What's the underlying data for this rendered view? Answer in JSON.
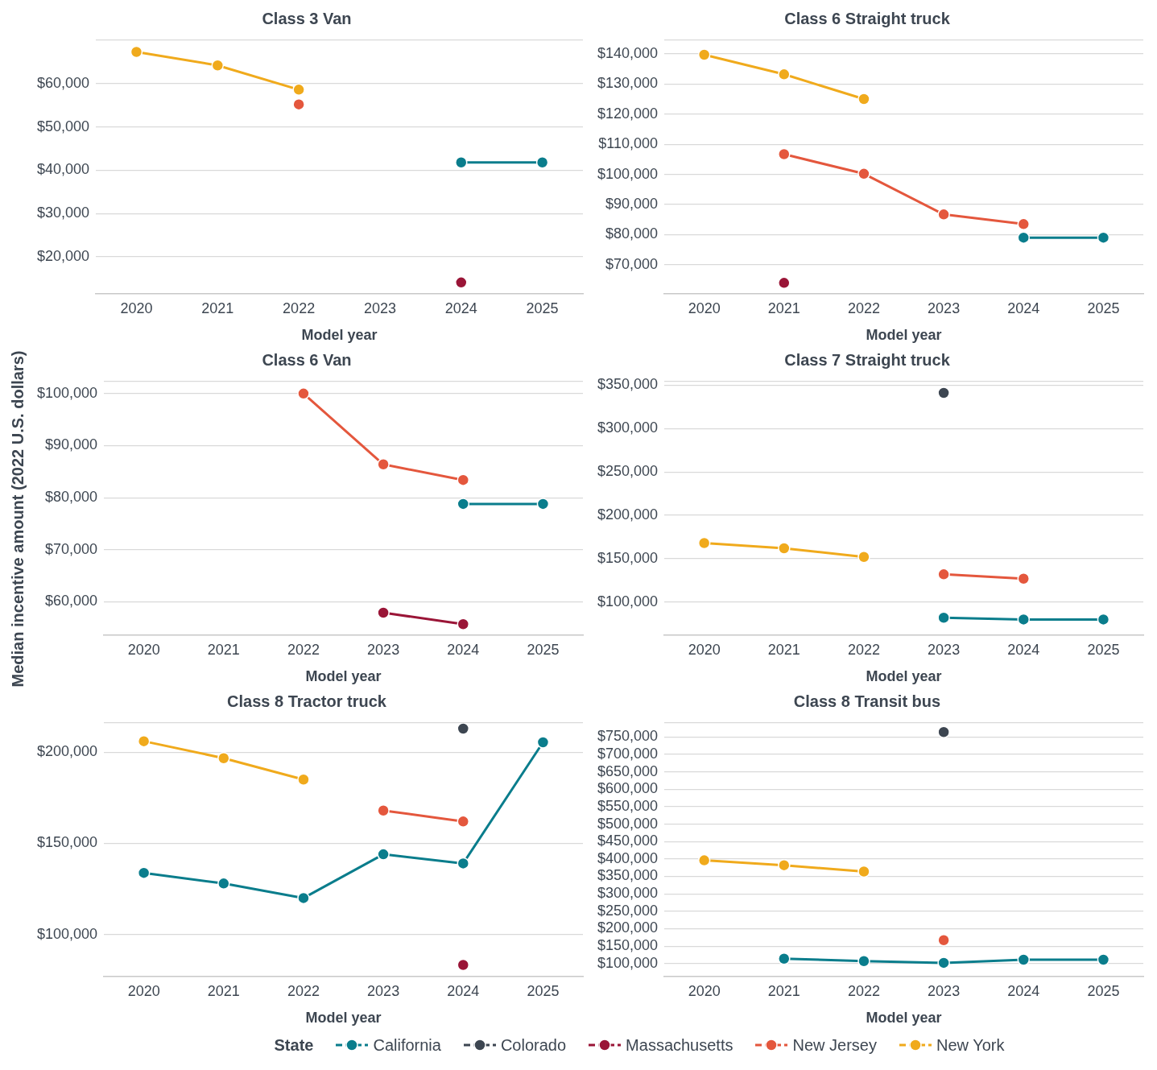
{
  "chart_data": [
    {
      "type": "line",
      "title": "Class 3 Van",
      "xlabel": "Model year",
      "categories": [
        "2020",
        "2021",
        "2022",
        "2023",
        "2024",
        "2025"
      ],
      "marker": "circle",
      "grid": "y",
      "ylim": [
        11500,
        70000
      ],
      "yticks": [
        {
          "value": 20000,
          "label": "$20,000"
        },
        {
          "value": 30000,
          "label": "$30,000"
        },
        {
          "value": 40000,
          "label": "$40,000"
        },
        {
          "value": 50000,
          "label": "$50,000"
        },
        {
          "value": 60000,
          "label": "$60,000"
        },
        {
          "value": 70000,
          "label": null
        }
      ],
      "series": [
        {
          "color": "#0a7d8c",
          "values": [
            null,
            null,
            null,
            null,
            41800,
            41800
          ]
        },
        {
          "color": "#9a1537",
          "values": [
            null,
            null,
            null,
            null,
            14100,
            null
          ]
        },
        {
          "color": "#e4573d",
          "values": [
            null,
            null,
            55200,
            null,
            null,
            null
          ]
        },
        {
          "color": "#f0aa1c",
          "values": [
            67300,
            64200,
            58600,
            null,
            null,
            null
          ]
        }
      ]
    },
    {
      "type": "line",
      "title": "Class 6 Straight truck",
      "xlabel": "Model year",
      "categories": [
        "2020",
        "2021",
        "2022",
        "2023",
        "2024",
        "2025"
      ],
      "marker": "circle",
      "grid": "y",
      "ylim": [
        60400,
        144500
      ],
      "yticks": [
        {
          "value": 70000,
          "label": "$70,000"
        },
        {
          "value": 80000,
          "label": "$80,000"
        },
        {
          "value": 90000,
          "label": "$90,000"
        },
        {
          "value": 100000,
          "label": "$100,000"
        },
        {
          "value": 110000,
          "label": "$110,000"
        },
        {
          "value": 120000,
          "label": "$120,000"
        },
        {
          "value": 130000,
          "label": "$130,000"
        },
        {
          "value": 140000,
          "label": "$140,000"
        },
        {
          "value": 144500,
          "label": null
        }
      ],
      "series": [
        {
          "color": "#0a7d8c",
          "values": [
            null,
            null,
            null,
            null,
            79000,
            79000
          ]
        },
        {
          "color": "#9a1537",
          "values": [
            null,
            64000,
            null,
            null,
            null,
            null
          ]
        },
        {
          "color": "#e4573d",
          "values": [
            null,
            106700,
            100200,
            86700,
            83500,
            null
          ]
        },
        {
          "color": "#f0aa1c",
          "values": [
            139700,
            133200,
            125000,
            null,
            null,
            null
          ]
        }
      ]
    },
    {
      "type": "line",
      "title": "Class 6 Van",
      "xlabel": "Model year",
      "ylabel": "Median incentive amount (2022 U.S. dollars)",
      "categories": [
        "2020",
        "2021",
        "2022",
        "2023",
        "2024",
        "2025"
      ],
      "marker": "circle",
      "grid": "y",
      "ylim": [
        53600,
        102300
      ],
      "yticks": [
        {
          "value": 60000,
          "label": "$60,000"
        },
        {
          "value": 70000,
          "label": "$70,000"
        },
        {
          "value": 80000,
          "label": "$80,000"
        },
        {
          "value": 90000,
          "label": "$90,000"
        },
        {
          "value": 100000,
          "label": "$100,000"
        },
        {
          "value": 102300,
          "label": null
        }
      ],
      "series": [
        {
          "color": "#0a7d8c",
          "values": [
            null,
            null,
            null,
            null,
            78800,
            78800
          ]
        },
        {
          "color": "#9a1537",
          "values": [
            null,
            null,
            null,
            57900,
            55700,
            null
          ]
        },
        {
          "color": "#e4573d",
          "values": [
            null,
            null,
            100000,
            86400,
            83400,
            null
          ]
        }
      ]
    },
    {
      "type": "line",
      "title": "Class 7 Straight truck",
      "xlabel": "Model year",
      "categories": [
        "2020",
        "2021",
        "2022",
        "2023",
        "2024",
        "2025"
      ],
      "marker": "circle",
      "grid": "y",
      "ylim": [
        62000,
        354000
      ],
      "yticks": [
        {
          "value": 100000,
          "label": "$100,000"
        },
        {
          "value": 150000,
          "label": "$150,000"
        },
        {
          "value": 200000,
          "label": "$200,000"
        },
        {
          "value": 250000,
          "label": "$250,000"
        },
        {
          "value": 300000,
          "label": "$300,000"
        },
        {
          "value": 350000,
          "label": "$350,000"
        },
        {
          "value": 354000,
          "label": null
        }
      ],
      "series": [
        {
          "color": "#0a7d8c",
          "values": [
            null,
            null,
            null,
            82000,
            80000,
            80000
          ]
        },
        {
          "color": "#3d4651",
          "values": [
            null,
            null,
            null,
            341000,
            null,
            null
          ]
        },
        {
          "color": "#e4573d",
          "values": [
            null,
            null,
            null,
            132000,
            127000,
            null
          ]
        },
        {
          "color": "#f0aa1c",
          "values": [
            168000,
            162000,
            152000,
            null,
            null,
            null
          ]
        }
      ]
    },
    {
      "type": "line",
      "title": "Class 8 Tractor truck",
      "xlabel": "Model year",
      "categories": [
        "2020",
        "2021",
        "2022",
        "2023",
        "2024",
        "2025"
      ],
      "marker": "circle",
      "grid": "y",
      "ylim": [
        77000,
        216000
      ],
      "yticks": [
        {
          "value": 100000,
          "label": "$100,000"
        },
        {
          "value": 150000,
          "label": "$150,000"
        },
        {
          "value": 200000,
          "label": "$200,000"
        },
        {
          "value": 216000,
          "label": null
        }
      ],
      "legend": "bottom",
      "legend_title": "State",
      "series": [
        {
          "name": "California",
          "color": "#0a7d8c",
          "values": [
            133800,
            128000,
            120000,
            144000,
            139000,
            205400
          ]
        },
        {
          "name": "Colorado",
          "color": "#3d4651",
          "values": [
            null,
            null,
            null,
            null,
            212900,
            null
          ]
        },
        {
          "name": "Massachusetts",
          "color": "#9a1537",
          "values": [
            null,
            null,
            null,
            null,
            83300,
            null
          ]
        },
        {
          "name": "New Jersey",
          "color": "#e4573d",
          "values": [
            null,
            null,
            null,
            168000,
            162000,
            null
          ]
        },
        {
          "name": "New York",
          "color": "#f0aa1c",
          "values": [
            206000,
            196700,
            185000,
            null,
            null,
            null
          ]
        }
      ]
    },
    {
      "type": "line",
      "title": "Class 8 Transit bus",
      "xlabel": "Model year",
      "categories": [
        "2020",
        "2021",
        "2022",
        "2023",
        "2024",
        "2025"
      ],
      "marker": "circle",
      "grid": "y",
      "ylim": [
        63000,
        790000
      ],
      "yticks": [
        {
          "value": 100000,
          "label": "$100,000"
        },
        {
          "value": 150000,
          "label": "$150,000"
        },
        {
          "value": 200000,
          "label": "$200,000"
        },
        {
          "value": 250000,
          "label": "$250,000"
        },
        {
          "value": 300000,
          "label": "$300,000"
        },
        {
          "value": 350000,
          "label": "$350,000"
        },
        {
          "value": 400000,
          "label": "$400,000"
        },
        {
          "value": 450000,
          "label": "$450,000"
        },
        {
          "value": 500000,
          "label": "$500,000"
        },
        {
          "value": 550000,
          "label": "$550,000"
        },
        {
          "value": 600000,
          "label": "$600,000"
        },
        {
          "value": 650000,
          "label": "$650,000"
        },
        {
          "value": 700000,
          "label": "$700,000"
        },
        {
          "value": 750000,
          "label": "$750,000"
        },
        {
          "value": 790000,
          "label": null
        }
      ],
      "series": [
        {
          "color": "#0a7d8c",
          "values": [
            null,
            114000,
            107000,
            102000,
            111000,
            111000
          ]
        },
        {
          "color": "#3d4651",
          "values": [
            null,
            null,
            null,
            764000,
            null,
            null
          ]
        },
        {
          "color": "#e4573d",
          "values": [
            null,
            null,
            null,
            167000,
            null,
            null
          ]
        },
        {
          "color": "#f0aa1c",
          "values": [
            396000,
            382000,
            364000,
            null,
            null,
            null
          ]
        }
      ]
    }
  ]
}
